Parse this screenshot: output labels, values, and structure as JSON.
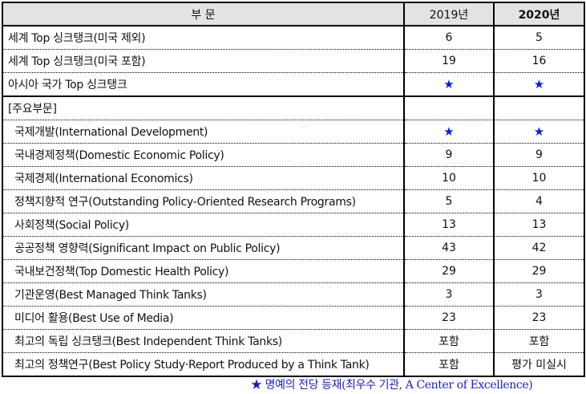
{
  "table": {
    "headers": [
      "부 문",
      "2019년",
      "2020년"
    ],
    "rows": [
      {
        "label": "세계 Top 싱크탱크(미국 제외)",
        "y2019": "6",
        "y2020": "5",
        "sub": false
      },
      {
        "label": "세계 Top 싱크탱크(미국 포함)",
        "y2019": "19",
        "y2020": "16",
        "sub": false
      },
      {
        "label": "아시아 국가 Top 싱크탱크",
        "y2019": "★",
        "y2020": "★",
        "sub": false
      },
      {
        "label": "[주요부문]",
        "y2019": "",
        "y2020": "",
        "sub": false
      },
      {
        "label": "국제개발(International Development)",
        "y2019": "★",
        "y2020": "★",
        "sub": true
      },
      {
        "label": "국내경제정책(Domestic Economic Policy)",
        "y2019": "9",
        "y2020": "9",
        "sub": true
      },
      {
        "label": "국제경제(International Economics)",
        "y2019": "10",
        "y2020": "10",
        "sub": true
      },
      {
        "label": "정책지향적 연구(Outstanding Policy-Oriented Research Programs)",
        "y2019": "5",
        "y2020": "4",
        "sub": true
      },
      {
        "label": "사회정책(Social Policy)",
        "y2019": "13",
        "y2020": "13",
        "sub": true
      },
      {
        "label": "공공정책 영향력(Significant Impact on Public Policy)",
        "y2019": "43",
        "y2020": "42",
        "sub": true
      },
      {
        "label": "국내보건정책(Top Domestic Health Policy)",
        "y2019": "29",
        "y2020": "29",
        "sub": true
      },
      {
        "label": "기관운영(Best Managed Think Tanks)",
        "y2019": "3",
        "y2020": "3",
        "sub": true
      },
      {
        "label": "미디어 활용(Best Use of Media)",
        "y2019": "23",
        "y2020": "23",
        "sub": true
      },
      {
        "label": "최고의 독립 싱크탱크(Best Independent Think Tanks)",
        "y2019": "포함",
        "y2020": "포함",
        "sub": true
      },
      {
        "label": "최고의 정책연구(Best Policy Study·Report Produced by a Think Tank)",
        "y2019": "포함",
        "y2020": "평가 미실시",
        "sub": true
      }
    ]
  },
  "footnote": "★ 명예의 전당 등재(최우수 기관, A Center of Excellence)",
  "colors": {
    "star": "#0a1ad8",
    "header_bg": "#e3e3e3",
    "footnote": "#1a1ad0"
  }
}
